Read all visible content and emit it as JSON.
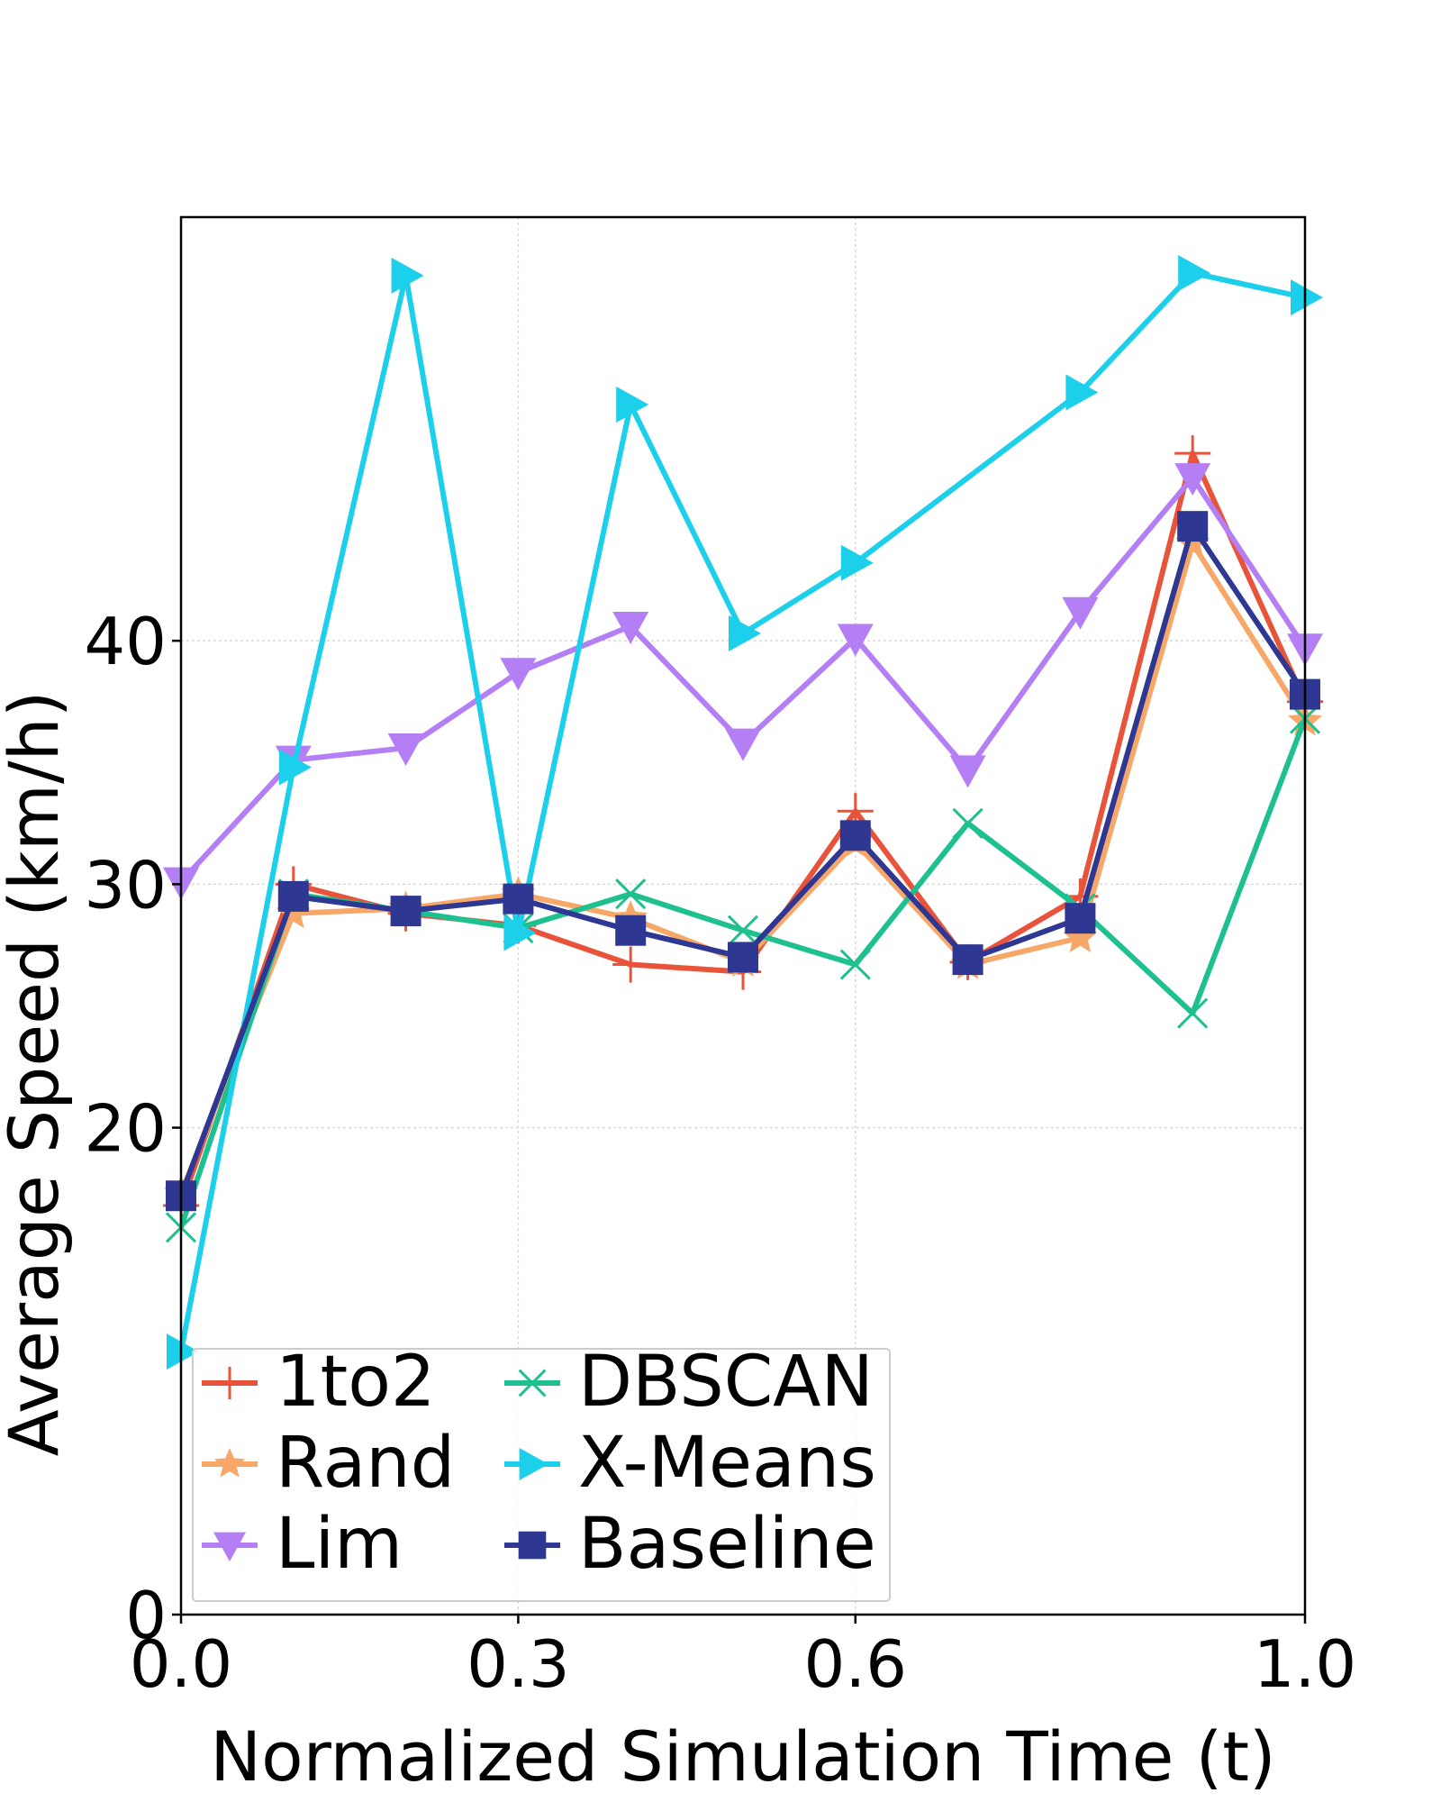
{
  "chart_data": {
    "type": "line",
    "title": "",
    "xlabel": "Normalized Simulation Time (t)",
    "ylabel": "Average Speed (km/h)",
    "xlim": [
      0.0,
      1.0
    ],
    "ylim": [
      0,
      57.4
    ],
    "xticks": [
      0.0,
      0.3,
      0.6,
      1.0
    ],
    "xtick_labels": [
      "0.0",
      "0.3",
      "0.6",
      "1.0"
    ],
    "yticks": [
      0,
      20,
      30,
      40
    ],
    "ytick_labels": [
      "0",
      "20",
      "30",
      "40"
    ],
    "grid": true,
    "legend_position": "bottom-left",
    "legend_columns": 2,
    "series": [
      {
        "name": "1to2",
        "color": "#e9533a",
        "marker": "plus",
        "x": [
          0.0,
          0.1,
          0.2,
          0.3,
          0.4,
          0.5,
          0.6,
          0.7,
          0.8,
          0.9,
          1.0
        ],
        "y": [
          16.8,
          30.0,
          28.8,
          28.3,
          26.7,
          26.4,
          33.0,
          26.8,
          29.5,
          47.7,
          37.5
        ]
      },
      {
        "name": "Rand",
        "color": "#f7a868",
        "marker": "star",
        "x": [
          0.0,
          0.1,
          0.2,
          0.3,
          0.4,
          0.5,
          0.6,
          0.7,
          0.8,
          0.9,
          1.0
        ],
        "y": [
          17.3,
          28.8,
          29.0,
          29.6,
          28.6,
          26.8,
          31.7,
          26.7,
          27.8,
          44.0,
          36.7
        ]
      },
      {
        "name": "Lim",
        "color": "#b47ef5",
        "marker": "triangle-down",
        "x": [
          0.0,
          0.1,
          0.2,
          0.3,
          0.4,
          0.5,
          0.6,
          0.7,
          0.8,
          0.9,
          1.0
        ],
        "y": [
          30.1,
          35.1,
          35.6,
          38.7,
          40.6,
          35.8,
          40.1,
          34.7,
          41.2,
          46.7,
          39.7
        ]
      },
      {
        "name": "DBSCAN",
        "color": "#1ec08f",
        "marker": "x",
        "x": [
          0.0,
          0.1,
          0.2,
          0.3,
          0.4,
          0.5,
          0.6,
          0.7,
          0.8,
          0.9,
          1.0
        ],
        "y": [
          15.9,
          29.6,
          28.9,
          28.2,
          29.6,
          28.1,
          26.7,
          32.5,
          29.0,
          24.7,
          36.8
        ]
      },
      {
        "name": "X-Means",
        "color": "#1ccfeb",
        "marker": "triangle-right",
        "x": [
          0.0,
          0.1,
          0.2,
          0.3,
          0.4,
          0.5,
          0.6,
          0.8,
          0.9,
          1.0
        ],
        "y": [
          10.8,
          34.8,
          55.0,
          28.0,
          49.7,
          40.3,
          43.2,
          50.2,
          55.1,
          54.1
        ]
      },
      {
        "name": "Baseline",
        "color": "#2e3892",
        "marker": "square",
        "x": [
          0.0,
          0.1,
          0.2,
          0.3,
          0.4,
          0.5,
          0.6,
          0.7,
          0.8,
          0.9,
          1.0
        ],
        "y": [
          17.2,
          29.5,
          28.9,
          29.4,
          28.1,
          27.0,
          32.0,
          26.9,
          28.6,
          44.7,
          37.8
        ]
      }
    ]
  }
}
